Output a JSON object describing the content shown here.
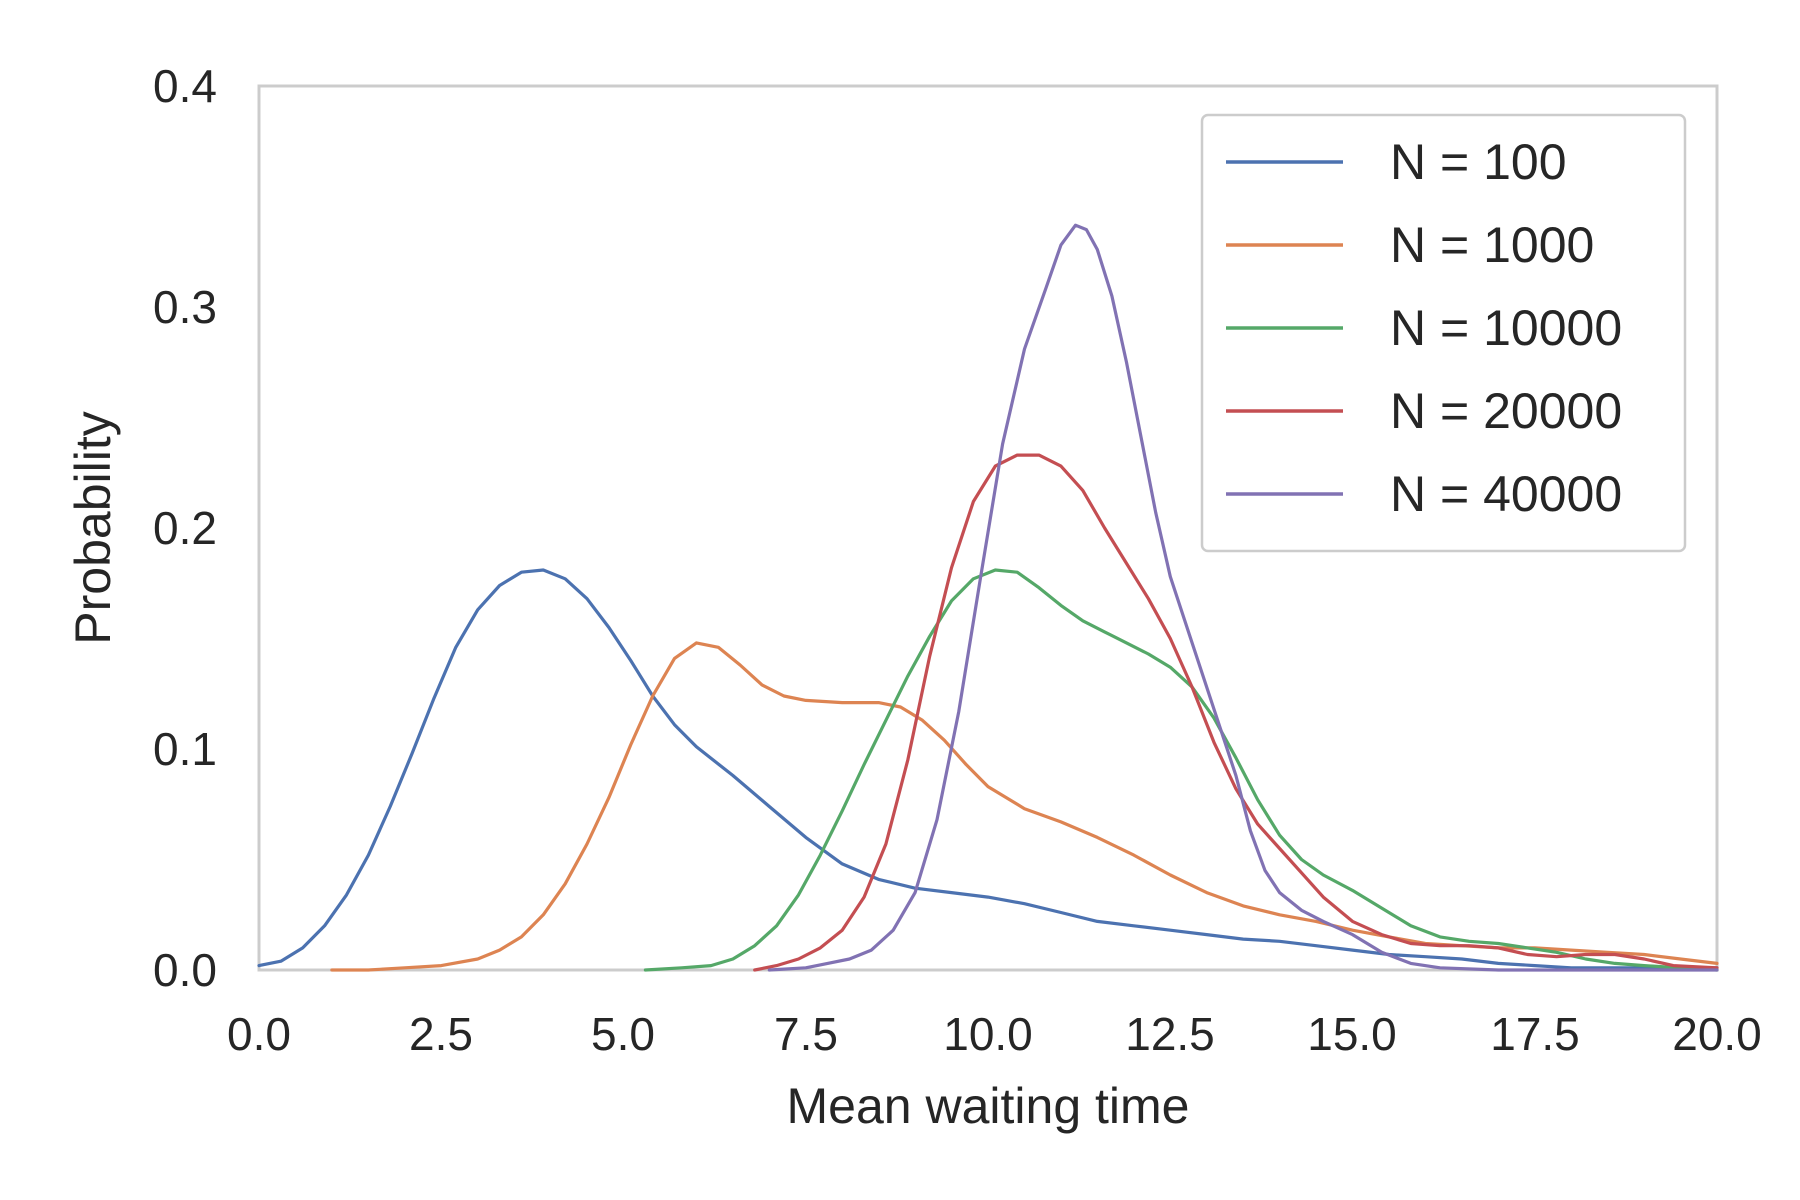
{
  "chart_data": {
    "type": "line",
    "title": "",
    "xlabel": "Mean waiting time",
    "ylabel": "Probability",
    "xlim": [
      0,
      20
    ],
    "ylim": [
      0,
      0.4
    ],
    "xticks": [
      0,
      2.5,
      5,
      7.5,
      10,
      12.5,
      15,
      17.5,
      20
    ],
    "xtick_labels": [
      "0.0",
      "2.5",
      "5.0",
      "7.5",
      "10.0",
      "12.5",
      "15.0",
      "17.5",
      "20.0"
    ],
    "yticks": [
      0,
      0.1,
      0.2,
      0.3,
      0.4
    ],
    "ytick_labels": [
      "0.0",
      "0.1",
      "0.2",
      "0.3",
      "0.4"
    ],
    "grid": false,
    "legend_position": "top-right",
    "series": [
      {
        "name": "N = 100",
        "color": "#4c72b0",
        "points": [
          [
            0,
            0.002
          ],
          [
            0.3,
            0.004
          ],
          [
            0.6,
            0.01
          ],
          [
            0.9,
            0.02
          ],
          [
            1.2,
            0.034
          ],
          [
            1.5,
            0.052
          ],
          [
            1.8,
            0.074
          ],
          [
            2.1,
            0.098
          ],
          [
            2.4,
            0.123
          ],
          [
            2.7,
            0.146
          ],
          [
            3.0,
            0.163
          ],
          [
            3.3,
            0.174
          ],
          [
            3.6,
            0.18
          ],
          [
            3.9,
            0.181
          ],
          [
            4.2,
            0.177
          ],
          [
            4.5,
            0.168
          ],
          [
            4.8,
            0.155
          ],
          [
            5.1,
            0.14
          ],
          [
            5.4,
            0.124
          ],
          [
            5.7,
            0.111
          ],
          [
            6.0,
            0.101
          ],
          [
            6.5,
            0.088
          ],
          [
            7.0,
            0.074
          ],
          [
            7.5,
            0.06
          ],
          [
            8.0,
            0.048
          ],
          [
            8.5,
            0.041
          ],
          [
            9.0,
            0.037
          ],
          [
            9.5,
            0.035
          ],
          [
            10.0,
            0.033
          ],
          [
            10.5,
            0.03
          ],
          [
            11.0,
            0.026
          ],
          [
            11.5,
            0.022
          ],
          [
            12.0,
            0.02
          ],
          [
            12.5,
            0.018
          ],
          [
            13.0,
            0.016
          ],
          [
            13.5,
            0.014
          ],
          [
            14.0,
            0.013
          ],
          [
            14.5,
            0.011
          ],
          [
            15.0,
            0.009
          ],
          [
            15.5,
            0.007
          ],
          [
            16.0,
            0.006
          ],
          [
            16.5,
            0.005
          ],
          [
            17.0,
            0.003
          ],
          [
            17.5,
            0.002
          ],
          [
            18.0,
            0.001
          ],
          [
            19.0,
            0.001
          ],
          [
            20.0,
            0.001
          ]
        ]
      },
      {
        "name": "N = 1000",
        "color": "#dd8452",
        "points": [
          [
            1.0,
            0.0
          ],
          [
            1.5,
            0.0
          ],
          [
            2.0,
            0.001
          ],
          [
            2.5,
            0.002
          ],
          [
            3.0,
            0.005
          ],
          [
            3.3,
            0.009
          ],
          [
            3.6,
            0.015
          ],
          [
            3.9,
            0.025
          ],
          [
            4.2,
            0.039
          ],
          [
            4.5,
            0.057
          ],
          [
            4.8,
            0.078
          ],
          [
            5.1,
            0.102
          ],
          [
            5.4,
            0.124
          ],
          [
            5.7,
            0.141
          ],
          [
            6.0,
            0.148
          ],
          [
            6.3,
            0.146
          ],
          [
            6.6,
            0.138
          ],
          [
            6.9,
            0.129
          ],
          [
            7.2,
            0.124
          ],
          [
            7.5,
            0.122
          ],
          [
            8.0,
            0.121
          ],
          [
            8.5,
            0.121
          ],
          [
            8.8,
            0.119
          ],
          [
            9.1,
            0.113
          ],
          [
            9.4,
            0.104
          ],
          [
            9.7,
            0.093
          ],
          [
            10.0,
            0.083
          ],
          [
            10.5,
            0.073
          ],
          [
            11.0,
            0.067
          ],
          [
            11.5,
            0.06
          ],
          [
            12.0,
            0.052
          ],
          [
            12.5,
            0.043
          ],
          [
            13.0,
            0.035
          ],
          [
            13.5,
            0.029
          ],
          [
            14.0,
            0.025
          ],
          [
            14.5,
            0.022
          ],
          [
            15.0,
            0.018
          ],
          [
            15.5,
            0.015
          ],
          [
            16.0,
            0.012
          ],
          [
            16.5,
            0.011
          ],
          [
            17.0,
            0.01
          ],
          [
            17.5,
            0.01
          ],
          [
            18.0,
            0.009
          ],
          [
            18.5,
            0.008
          ],
          [
            19.0,
            0.007
          ],
          [
            19.5,
            0.005
          ],
          [
            20.0,
            0.003
          ]
        ]
      },
      {
        "name": "N = 10000",
        "color": "#55a868",
        "points": [
          [
            5.3,
            0.0
          ],
          [
            5.8,
            0.001
          ],
          [
            6.2,
            0.002
          ],
          [
            6.5,
            0.005
          ],
          [
            6.8,
            0.011
          ],
          [
            7.1,
            0.02
          ],
          [
            7.4,
            0.034
          ],
          [
            7.7,
            0.052
          ],
          [
            8.0,
            0.072
          ],
          [
            8.3,
            0.093
          ],
          [
            8.6,
            0.113
          ],
          [
            8.9,
            0.133
          ],
          [
            9.2,
            0.151
          ],
          [
            9.5,
            0.167
          ],
          [
            9.8,
            0.177
          ],
          [
            10.1,
            0.181
          ],
          [
            10.4,
            0.18
          ],
          [
            10.7,
            0.173
          ],
          [
            11.0,
            0.165
          ],
          [
            11.3,
            0.158
          ],
          [
            11.6,
            0.153
          ],
          [
            11.9,
            0.148
          ],
          [
            12.2,
            0.143
          ],
          [
            12.5,
            0.137
          ],
          [
            12.8,
            0.128
          ],
          [
            13.1,
            0.114
          ],
          [
            13.4,
            0.096
          ],
          [
            13.7,
            0.077
          ],
          [
            14.0,
            0.061
          ],
          [
            14.3,
            0.05
          ],
          [
            14.6,
            0.043
          ],
          [
            15.0,
            0.036
          ],
          [
            15.4,
            0.028
          ],
          [
            15.8,
            0.02
          ],
          [
            16.2,
            0.015
          ],
          [
            16.6,
            0.013
          ],
          [
            17.0,
            0.012
          ],
          [
            17.4,
            0.01
          ],
          [
            17.8,
            0.008
          ],
          [
            18.2,
            0.005
          ],
          [
            18.6,
            0.003
          ],
          [
            19.0,
            0.002
          ],
          [
            19.5,
            0.001
          ],
          [
            20.0,
            0.0
          ]
        ]
      },
      {
        "name": "N = 20000",
        "color": "#c44e52",
        "points": [
          [
            6.8,
            0.0
          ],
          [
            7.1,
            0.002
          ],
          [
            7.4,
            0.005
          ],
          [
            7.7,
            0.01
          ],
          [
            8.0,
            0.018
          ],
          [
            8.3,
            0.033
          ],
          [
            8.6,
            0.057
          ],
          [
            8.9,
            0.095
          ],
          [
            9.2,
            0.142
          ],
          [
            9.5,
            0.182
          ],
          [
            9.8,
            0.212
          ],
          [
            10.1,
            0.228
          ],
          [
            10.4,
            0.233
          ],
          [
            10.7,
            0.233
          ],
          [
            11.0,
            0.228
          ],
          [
            11.3,
            0.217
          ],
          [
            11.6,
            0.2
          ],
          [
            11.9,
            0.184
          ],
          [
            12.2,
            0.168
          ],
          [
            12.5,
            0.15
          ],
          [
            12.8,
            0.128
          ],
          [
            13.1,
            0.103
          ],
          [
            13.4,
            0.082
          ],
          [
            13.7,
            0.066
          ],
          [
            14.0,
            0.055
          ],
          [
            14.3,
            0.044
          ],
          [
            14.6,
            0.033
          ],
          [
            15.0,
            0.022
          ],
          [
            15.4,
            0.016
          ],
          [
            15.8,
            0.012
          ],
          [
            16.2,
            0.011
          ],
          [
            16.6,
            0.011
          ],
          [
            17.0,
            0.01
          ],
          [
            17.4,
            0.007
          ],
          [
            17.8,
            0.006
          ],
          [
            18.2,
            0.007
          ],
          [
            18.6,
            0.007
          ],
          [
            19.0,
            0.005
          ],
          [
            19.4,
            0.002
          ],
          [
            20.0,
            0.001
          ]
        ]
      },
      {
        "name": "N = 40000",
        "color": "#8172b3",
        "points": [
          [
            7.0,
            0.0
          ],
          [
            7.5,
            0.001
          ],
          [
            7.8,
            0.003
          ],
          [
            8.1,
            0.005
          ],
          [
            8.4,
            0.009
          ],
          [
            8.7,
            0.018
          ],
          [
            9.0,
            0.035
          ],
          [
            9.3,
            0.068
          ],
          [
            9.6,
            0.117
          ],
          [
            9.9,
            0.178
          ],
          [
            10.2,
            0.238
          ],
          [
            10.5,
            0.281
          ],
          [
            10.8,
            0.309
          ],
          [
            11.0,
            0.328
          ],
          [
            11.2,
            0.337
          ],
          [
            11.35,
            0.335
          ],
          [
            11.5,
            0.326
          ],
          [
            11.7,
            0.305
          ],
          [
            11.9,
            0.275
          ],
          [
            12.1,
            0.241
          ],
          [
            12.3,
            0.207
          ],
          [
            12.5,
            0.178
          ],
          [
            12.8,
            0.148
          ],
          [
            13.1,
            0.118
          ],
          [
            13.4,
            0.088
          ],
          [
            13.6,
            0.063
          ],
          [
            13.8,
            0.045
          ],
          [
            14.0,
            0.035
          ],
          [
            14.3,
            0.027
          ],
          [
            14.6,
            0.022
          ],
          [
            15.0,
            0.016
          ],
          [
            15.4,
            0.008
          ],
          [
            15.8,
            0.003
          ],
          [
            16.2,
            0.001
          ],
          [
            17.0,
            0.0
          ],
          [
            20.0,
            0.0
          ]
        ]
      }
    ]
  }
}
